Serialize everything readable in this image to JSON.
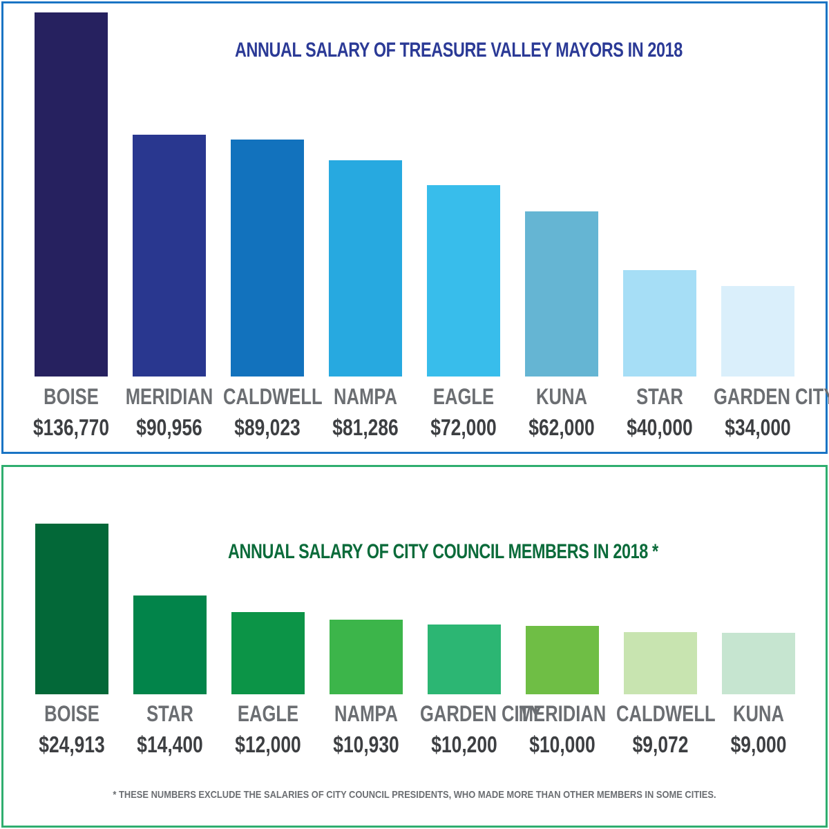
{
  "chart_data": [
    {
      "type": "bar",
      "title": "ANNUAL SALARY OF TREASURE VALLEY MAYORS IN 2018",
      "categories": [
        "BOISE",
        "MERIDIAN",
        "CALDWELL",
        "NAMPA",
        "EAGLE",
        "KUNA",
        "STAR",
        "GARDEN CITY"
      ],
      "values": [
        136770,
        90956,
        89023,
        81286,
        72000,
        62000,
        40000,
        34000
      ],
      "value_labels": [
        "$136,770",
        "$90,956",
        "$89,023",
        "$81,286",
        "$72,000",
        "$62,000",
        "$40,000",
        "$34,000"
      ],
      "colors": [
        "#26215f",
        "#29378f",
        "#1272bd",
        "#27a9e0",
        "#38bdeb",
        "#65b5d3",
        "#a6def6",
        "#daeffb"
      ],
      "ylim": [
        0,
        136770
      ],
      "grid": false,
      "legend": "none"
    },
    {
      "type": "bar",
      "title": "ANNUAL SALARY OF CITY COUNCIL MEMBERS IN 2018 *",
      "categories": [
        "BOISE",
        "STAR",
        "EAGLE",
        "NAMPA",
        "GARDEN CITY",
        "MERIDIAN",
        "CALDWELL",
        "KUNA"
      ],
      "values": [
        24913,
        14400,
        12000,
        10930,
        10200,
        10000,
        9072,
        9000
      ],
      "value_labels": [
        "$24,913",
        "$14,400",
        "$12,000",
        "$10,930",
        "$10,200",
        "$10,000",
        "$9,072",
        "$9,000"
      ],
      "colors": [
        "#036838",
        "#02844a",
        "#0c9447",
        "#3cb54a",
        "#2cb673",
        "#6fbe45",
        "#c8e4b0",
        "#c6e5d0"
      ],
      "ylim": [
        0,
        24913
      ],
      "grid": false,
      "legend": "none"
    }
  ],
  "footnote": "* THESE NUMBERS EXCLUDE THE SALARIES OF CITY COUNCIL PRESIDENTS, WHO MADE MORE THAN OTHER MEMBERS IN SOME CITIES."
}
